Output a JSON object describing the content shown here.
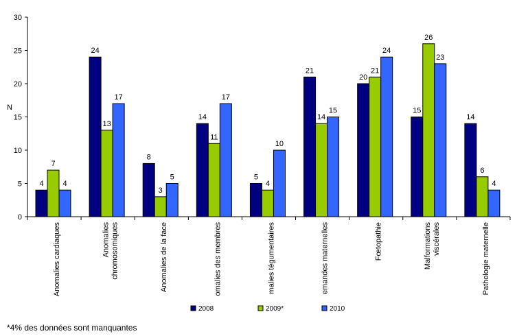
{
  "chart_data": {
    "type": "bar",
    "ylabel": "N",
    "ylim": [
      0,
      30
    ],
    "yticks": [
      0,
      5,
      10,
      15,
      20,
      25,
      30
    ],
    "categories": [
      "Anomalies cardiaques",
      "Anomalies chromosomiques",
      "Anomalies de la face",
      "omalies des membres",
      "malies tégumentaires",
      "emandes maternelles",
      "Fœtopathie",
      "Malformations viscérales",
      "Pathologie maternelle"
    ],
    "series": [
      {
        "name": "2008",
        "color": "#000080",
        "values": [
          4,
          24,
          8,
          14,
          5,
          21,
          20,
          15,
          14
        ]
      },
      {
        "name": "2009*",
        "color": "#99CC00",
        "values": [
          7,
          13,
          3,
          11,
          4,
          14,
          21,
          26,
          6
        ]
      },
      {
        "name": "2010",
        "color": "#3366FF",
        "values": [
          4,
          17,
          5,
          17,
          10,
          15,
          24,
          23,
          4
        ]
      }
    ],
    "legend": "bottom",
    "grid": false
  },
  "footnote": "*4% des données sont manquantes"
}
